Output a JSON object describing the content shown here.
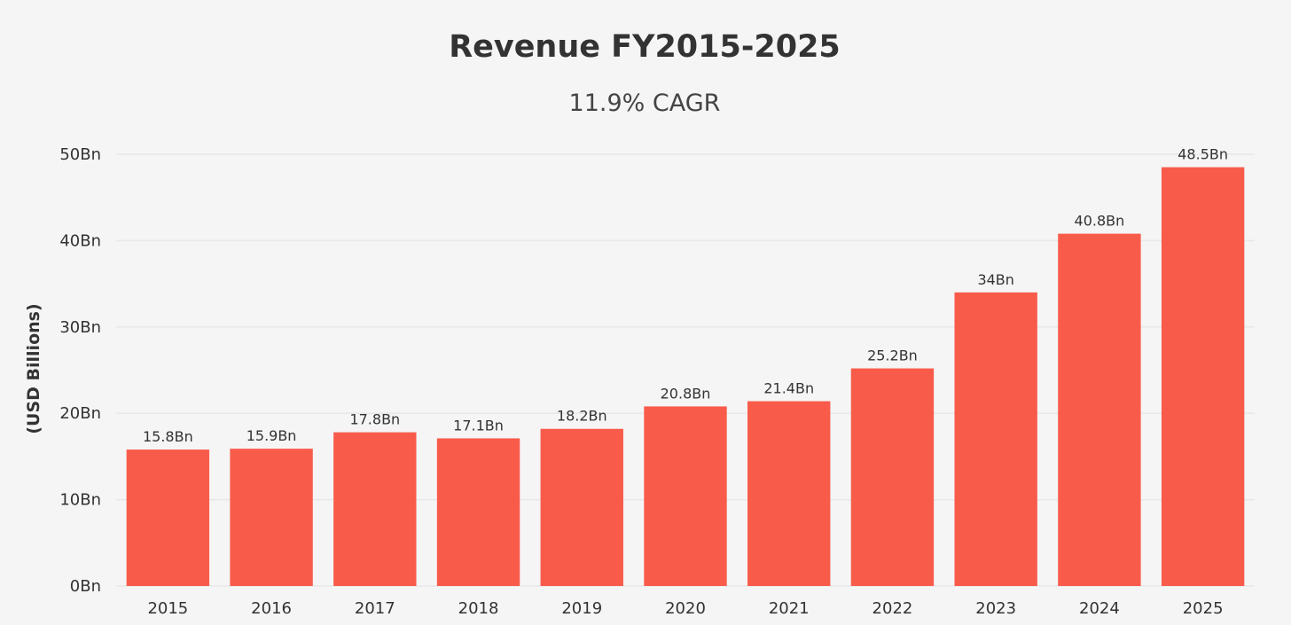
{
  "chart_data": {
    "type": "bar",
    "title": "Revenue FY2015-2025",
    "subtitle": "11.9% CAGR",
    "xlabel": "",
    "ylabel": "(USD Billions)",
    "ylim": [
      0,
      50
    ],
    "grid": true,
    "categories": [
      "2015",
      "2016",
      "2017",
      "2018",
      "2019",
      "2020",
      "2021",
      "2022",
      "2023",
      "2024",
      "2025"
    ],
    "values": [
      15.8,
      15.9,
      17.8,
      17.1,
      18.2,
      20.8,
      21.4,
      25.2,
      34,
      40.8,
      48.5
    ],
    "data_labels": [
      "15.8Bn",
      "15.9Bn",
      "17.8Bn",
      "17.1Bn",
      "18.2Bn",
      "20.8Bn",
      "21.4Bn",
      "25.2Bn",
      "34Bn",
      "40.8Bn",
      "48.5Bn"
    ],
    "y_ticks": [
      0,
      10,
      20,
      30,
      40,
      50
    ],
    "y_tick_labels": [
      "0Bn",
      "10Bn",
      "20Bn",
      "30Bn",
      "40Bn",
      "50Bn"
    ],
    "bar_color": "#f95b4b"
  }
}
